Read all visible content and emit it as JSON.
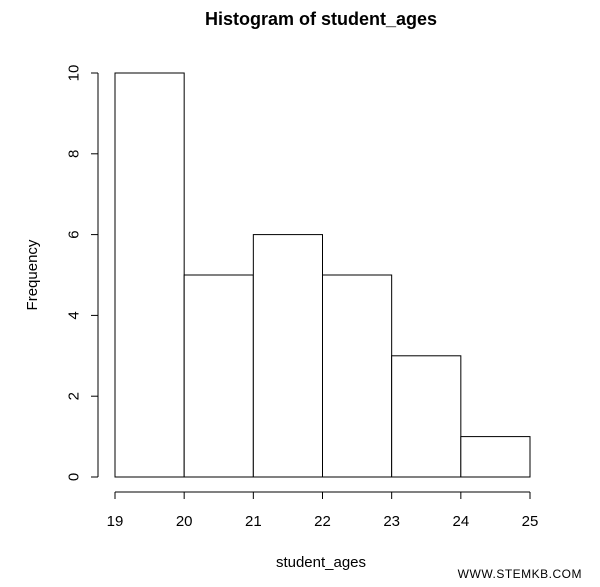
{
  "chart_data": {
    "type": "bar",
    "title": "Histogram of student_ages",
    "xlabel": "student_ages",
    "ylabel": "Frequency",
    "bins": [
      {
        "start": 19,
        "end": 20,
        "count": 10
      },
      {
        "start": 20,
        "end": 21,
        "count": 5
      },
      {
        "start": 21,
        "end": 22,
        "count": 6
      },
      {
        "start": 22,
        "end": 23,
        "count": 5
      },
      {
        "start": 23,
        "end": 24,
        "count": 3
      },
      {
        "start": 24,
        "end": 25,
        "count": 1
      }
    ],
    "xlim": [
      19,
      25
    ],
    "ylim": [
      0,
      10
    ],
    "x_ticks": [
      "19",
      "20",
      "21",
      "22",
      "23",
      "24",
      "25"
    ],
    "y_ticks": [
      "0",
      "2",
      "4",
      "6",
      "8",
      "10"
    ],
    "grid": false,
    "colors": {
      "bar_fill": "#ffffff",
      "bar_stroke": "#000000"
    }
  },
  "watermark": "WWW.STEMKB.COM"
}
